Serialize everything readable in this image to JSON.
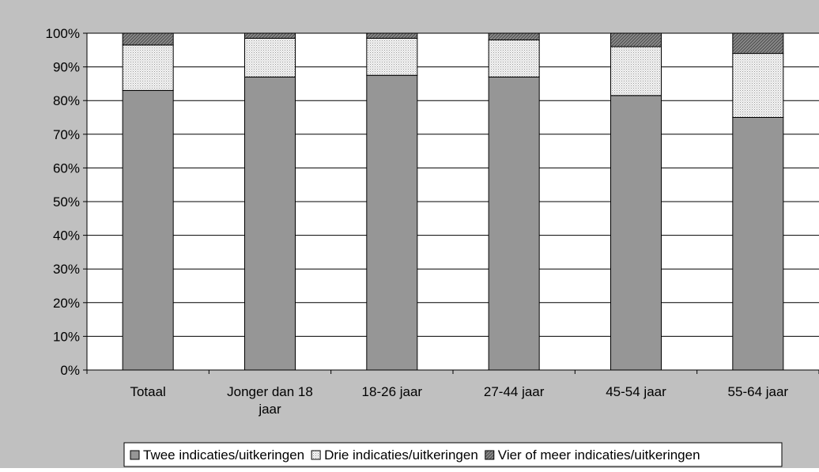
{
  "colors": {
    "plot_area": "#ffffff",
    "chart_area": "#c0c0c0",
    "twee": "#969696",
    "drie": "#f4f4f4",
    "vier": "#8c8c8c",
    "axis": "#000000"
  },
  "chart_data": {
    "type": "bar",
    "stacked": true,
    "percent": true,
    "title": "",
    "xlabel": "",
    "ylabel": "",
    "ylim": [
      0,
      100
    ],
    "yticks": [
      "0%",
      "10%",
      "20%",
      "30%",
      "40%",
      "50%",
      "60%",
      "70%",
      "80%",
      "90%",
      "100%"
    ],
    "grid": true,
    "legend_position": "bottom",
    "categories": [
      [
        "Totaal"
      ],
      [
        "Jonger dan 18",
        "jaar"
      ],
      [
        "18-26 jaar"
      ],
      [
        "27-44 jaar"
      ],
      [
        "45-54 jaar"
      ],
      [
        "55-64 jaar"
      ]
    ],
    "series": [
      {
        "name": "Twee indicaties/uitkeringen",
        "key": "twee",
        "pattern": "solid",
        "values": [
          83,
          87,
          87.5,
          87,
          81.5,
          75
        ]
      },
      {
        "name": "Drie indicaties/uitkeringen",
        "key": "drie",
        "pattern": "dots",
        "values": [
          13.5,
          11.5,
          11,
          11,
          14.5,
          19
        ]
      },
      {
        "name": "Vier of meer indicaties/uitkeringen",
        "key": "vier",
        "pattern": "hatch",
        "values": [
          3.5,
          1.5,
          1.5,
          2,
          4,
          6
        ]
      }
    ]
  }
}
